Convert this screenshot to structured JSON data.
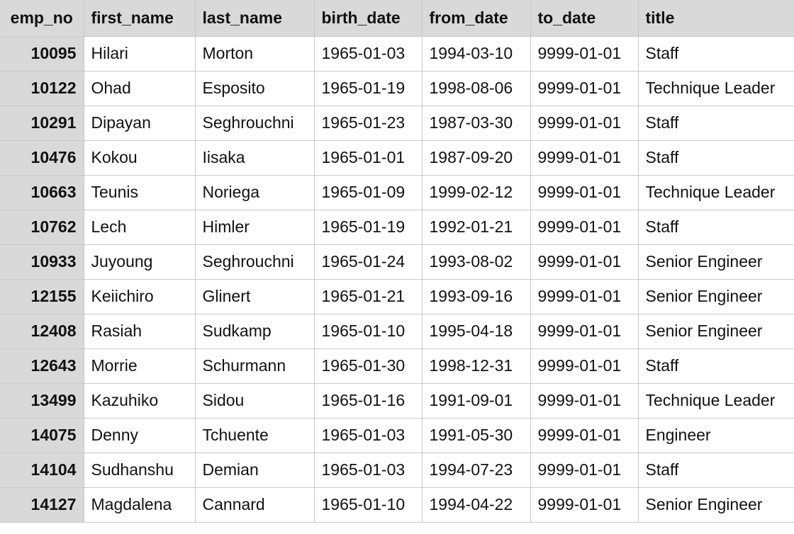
{
  "table": {
    "columns": [
      "emp_no",
      "first_name",
      "last_name",
      "birth_date",
      "from_date",
      "to_date",
      "title"
    ],
    "rows": [
      [
        "10095",
        "Hilari",
        "Morton",
        "1965-01-03",
        "1994-03-10",
        "9999-01-01",
        "Staff"
      ],
      [
        "10122",
        "Ohad",
        "Esposito",
        "1965-01-19",
        "1998-08-06",
        "9999-01-01",
        "Technique Leader"
      ],
      [
        "10291",
        "Dipayan",
        "Seghrouchni",
        "1965-01-23",
        "1987-03-30",
        "9999-01-01",
        "Staff"
      ],
      [
        "10476",
        "Kokou",
        "Iisaka",
        "1965-01-01",
        "1987-09-20",
        "9999-01-01",
        "Staff"
      ],
      [
        "10663",
        "Teunis",
        "Noriega",
        "1965-01-09",
        "1999-02-12",
        "9999-01-01",
        "Technique Leader"
      ],
      [
        "10762",
        "Lech",
        "Himler",
        "1965-01-19",
        "1992-01-21",
        "9999-01-01",
        "Staff"
      ],
      [
        "10933",
        "Juyoung",
        "Seghrouchni",
        "1965-01-24",
        "1993-08-02",
        "9999-01-01",
        "Senior Engineer"
      ],
      [
        "12155",
        "Keiichiro",
        "Glinert",
        "1965-01-21",
        "1993-09-16",
        "9999-01-01",
        "Senior Engineer"
      ],
      [
        "12408",
        "Rasiah",
        "Sudkamp",
        "1965-01-10",
        "1995-04-18",
        "9999-01-01",
        "Senior Engineer"
      ],
      [
        "12643",
        "Morrie",
        "Schurmann",
        "1965-01-30",
        "1998-12-31",
        "9999-01-01",
        "Staff"
      ],
      [
        "13499",
        "Kazuhiko",
        "Sidou",
        "1965-01-16",
        "1991-09-01",
        "9999-01-01",
        "Technique Leader"
      ],
      [
        "14075",
        "Denny",
        "Tchuente",
        "1965-01-03",
        "1991-05-30",
        "9999-01-01",
        "Engineer"
      ],
      [
        "14104",
        "Sudhanshu",
        "Demian",
        "1965-01-03",
        "1994-07-23",
        "9999-01-01",
        "Staff"
      ],
      [
        "14127",
        "Magdalena",
        "Cannard",
        "1965-01-10",
        "1994-04-22",
        "9999-01-01",
        "Senior Engineer"
      ]
    ]
  }
}
